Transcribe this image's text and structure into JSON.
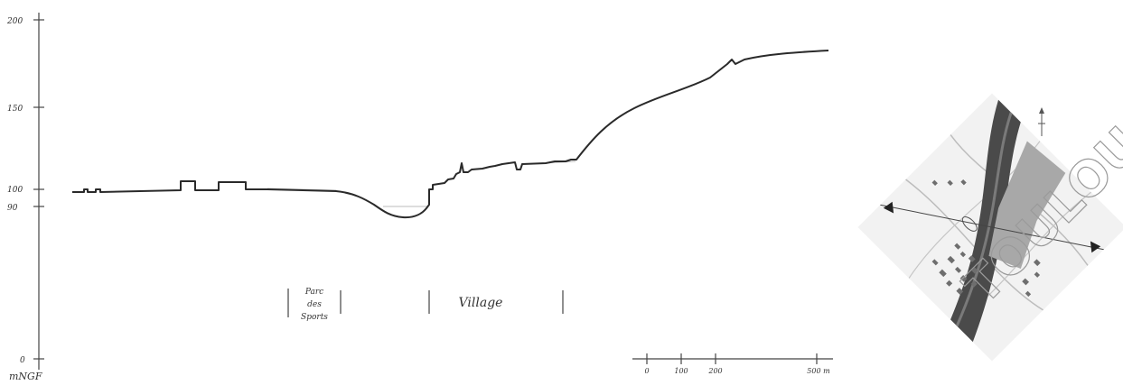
{
  "profile": {
    "y_axis": {
      "unit": "mNGF",
      "ticks": [
        {
          "label": "200",
          "value": 200
        },
        {
          "label": "150",
          "value": 150
        },
        {
          "label": "100",
          "value": 100
        },
        {
          "label": "90",
          "value": 90
        },
        {
          "label": "0",
          "value": 0
        }
      ]
    },
    "zones": [
      {
        "label": "Parc des Sports"
      },
      {
        "label": "Village"
      }
    ],
    "scale_bar": {
      "ticks": [
        "0",
        "100",
        "200",
        "500 m"
      ]
    }
  },
  "map": {
    "watermark": "TOULOUSE",
    "north_icon": "north-arrow-icon"
  },
  "colors": {
    "ink": "#2a2a2a",
    "river": "#4a4a4a",
    "built_area": "#a8a8a8",
    "map_background": "#f2f2f2"
  }
}
